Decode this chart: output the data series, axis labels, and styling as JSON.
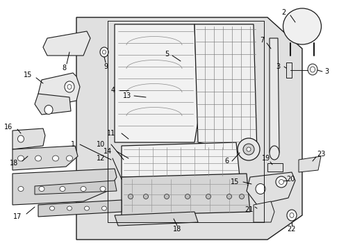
{
  "bg": "#ffffff",
  "lc": "#1a1a1a",
  "gray_fill": "#d8d8d8",
  "light_gray": "#eeeeee",
  "mid_gray": "#cccccc",
  "figsize": [
    4.89,
    3.6
  ],
  "dpi": 100
}
